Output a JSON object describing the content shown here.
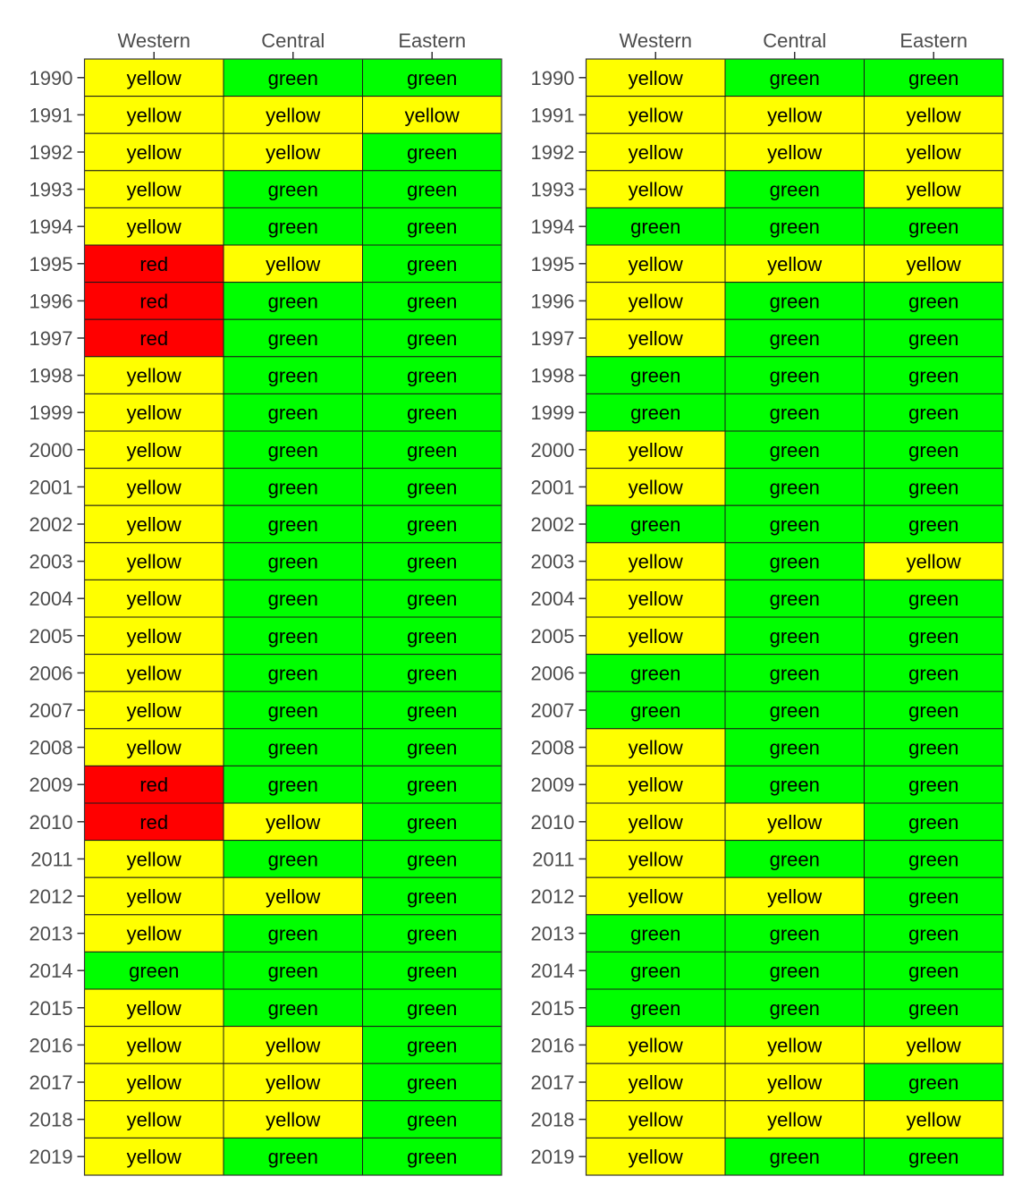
{
  "chart_data": [
    {
      "type": "heatmap",
      "columns": [
        "Western",
        "Central",
        "Eastern"
      ],
      "rows": [
        "1990",
        "1991",
        "1992",
        "1993",
        "1994",
        "1995",
        "1996",
        "1997",
        "1998",
        "1999",
        "2000",
        "2001",
        "2002",
        "2003",
        "2004",
        "2005",
        "2006",
        "2007",
        "2008",
        "2009",
        "2010",
        "2011",
        "2012",
        "2013",
        "2014",
        "2015",
        "2016",
        "2017",
        "2018",
        "2019"
      ],
      "values": [
        [
          "yellow",
          "green",
          "green"
        ],
        [
          "yellow",
          "yellow",
          "yellow"
        ],
        [
          "yellow",
          "yellow",
          "green"
        ],
        [
          "yellow",
          "green",
          "green"
        ],
        [
          "yellow",
          "green",
          "green"
        ],
        [
          "red",
          "yellow",
          "green"
        ],
        [
          "red",
          "green",
          "green"
        ],
        [
          "red",
          "green",
          "green"
        ],
        [
          "yellow",
          "green",
          "green"
        ],
        [
          "yellow",
          "green",
          "green"
        ],
        [
          "yellow",
          "green",
          "green"
        ],
        [
          "yellow",
          "green",
          "green"
        ],
        [
          "yellow",
          "green",
          "green"
        ],
        [
          "yellow",
          "green",
          "green"
        ],
        [
          "yellow",
          "green",
          "green"
        ],
        [
          "yellow",
          "green",
          "green"
        ],
        [
          "yellow",
          "green",
          "green"
        ],
        [
          "yellow",
          "green",
          "green"
        ],
        [
          "yellow",
          "green",
          "green"
        ],
        [
          "red",
          "green",
          "green"
        ],
        [
          "red",
          "yellow",
          "green"
        ],
        [
          "yellow",
          "green",
          "green"
        ],
        [
          "yellow",
          "yellow",
          "green"
        ],
        [
          "yellow",
          "green",
          "green"
        ],
        [
          "green",
          "green",
          "green"
        ],
        [
          "yellow",
          "green",
          "green"
        ],
        [
          "yellow",
          "yellow",
          "green"
        ],
        [
          "yellow",
          "yellow",
          "green"
        ],
        [
          "yellow",
          "yellow",
          "green"
        ],
        [
          "yellow",
          "green",
          "green"
        ]
      ]
    },
    {
      "type": "heatmap",
      "columns": [
        "Western",
        "Central",
        "Eastern"
      ],
      "rows": [
        "1990",
        "1991",
        "1992",
        "1993",
        "1994",
        "1995",
        "1996",
        "1997",
        "1998",
        "1999",
        "2000",
        "2001",
        "2002",
        "2003",
        "2004",
        "2005",
        "2006",
        "2007",
        "2008",
        "2009",
        "2010",
        "2011",
        "2012",
        "2013",
        "2014",
        "2015",
        "2016",
        "2017",
        "2018",
        "2019"
      ],
      "values": [
        [
          "yellow",
          "green",
          "green"
        ],
        [
          "yellow",
          "yellow",
          "yellow"
        ],
        [
          "yellow",
          "yellow",
          "yellow"
        ],
        [
          "yellow",
          "green",
          "yellow"
        ],
        [
          "green",
          "green",
          "green"
        ],
        [
          "yellow",
          "yellow",
          "yellow"
        ],
        [
          "yellow",
          "green",
          "green"
        ],
        [
          "yellow",
          "green",
          "green"
        ],
        [
          "green",
          "green",
          "green"
        ],
        [
          "green",
          "green",
          "green"
        ],
        [
          "yellow",
          "green",
          "green"
        ],
        [
          "yellow",
          "green",
          "green"
        ],
        [
          "green",
          "green",
          "green"
        ],
        [
          "yellow",
          "green",
          "yellow"
        ],
        [
          "yellow",
          "green",
          "green"
        ],
        [
          "yellow",
          "green",
          "green"
        ],
        [
          "green",
          "green",
          "green"
        ],
        [
          "green",
          "green",
          "green"
        ],
        [
          "yellow",
          "green",
          "green"
        ],
        [
          "yellow",
          "green",
          "green"
        ],
        [
          "yellow",
          "yellow",
          "green"
        ],
        [
          "yellow",
          "green",
          "green"
        ],
        [
          "yellow",
          "yellow",
          "green"
        ],
        [
          "green",
          "green",
          "green"
        ],
        [
          "green",
          "green",
          "green"
        ],
        [
          "green",
          "green",
          "green"
        ],
        [
          "yellow",
          "yellow",
          "yellow"
        ],
        [
          "yellow",
          "yellow",
          "green"
        ],
        [
          "yellow",
          "yellow",
          "yellow"
        ],
        [
          "yellow",
          "green",
          "green"
        ]
      ]
    }
  ],
  "colors": {
    "yellow": "#ffff00",
    "green": "#00ff00",
    "red": "#ff0000"
  }
}
